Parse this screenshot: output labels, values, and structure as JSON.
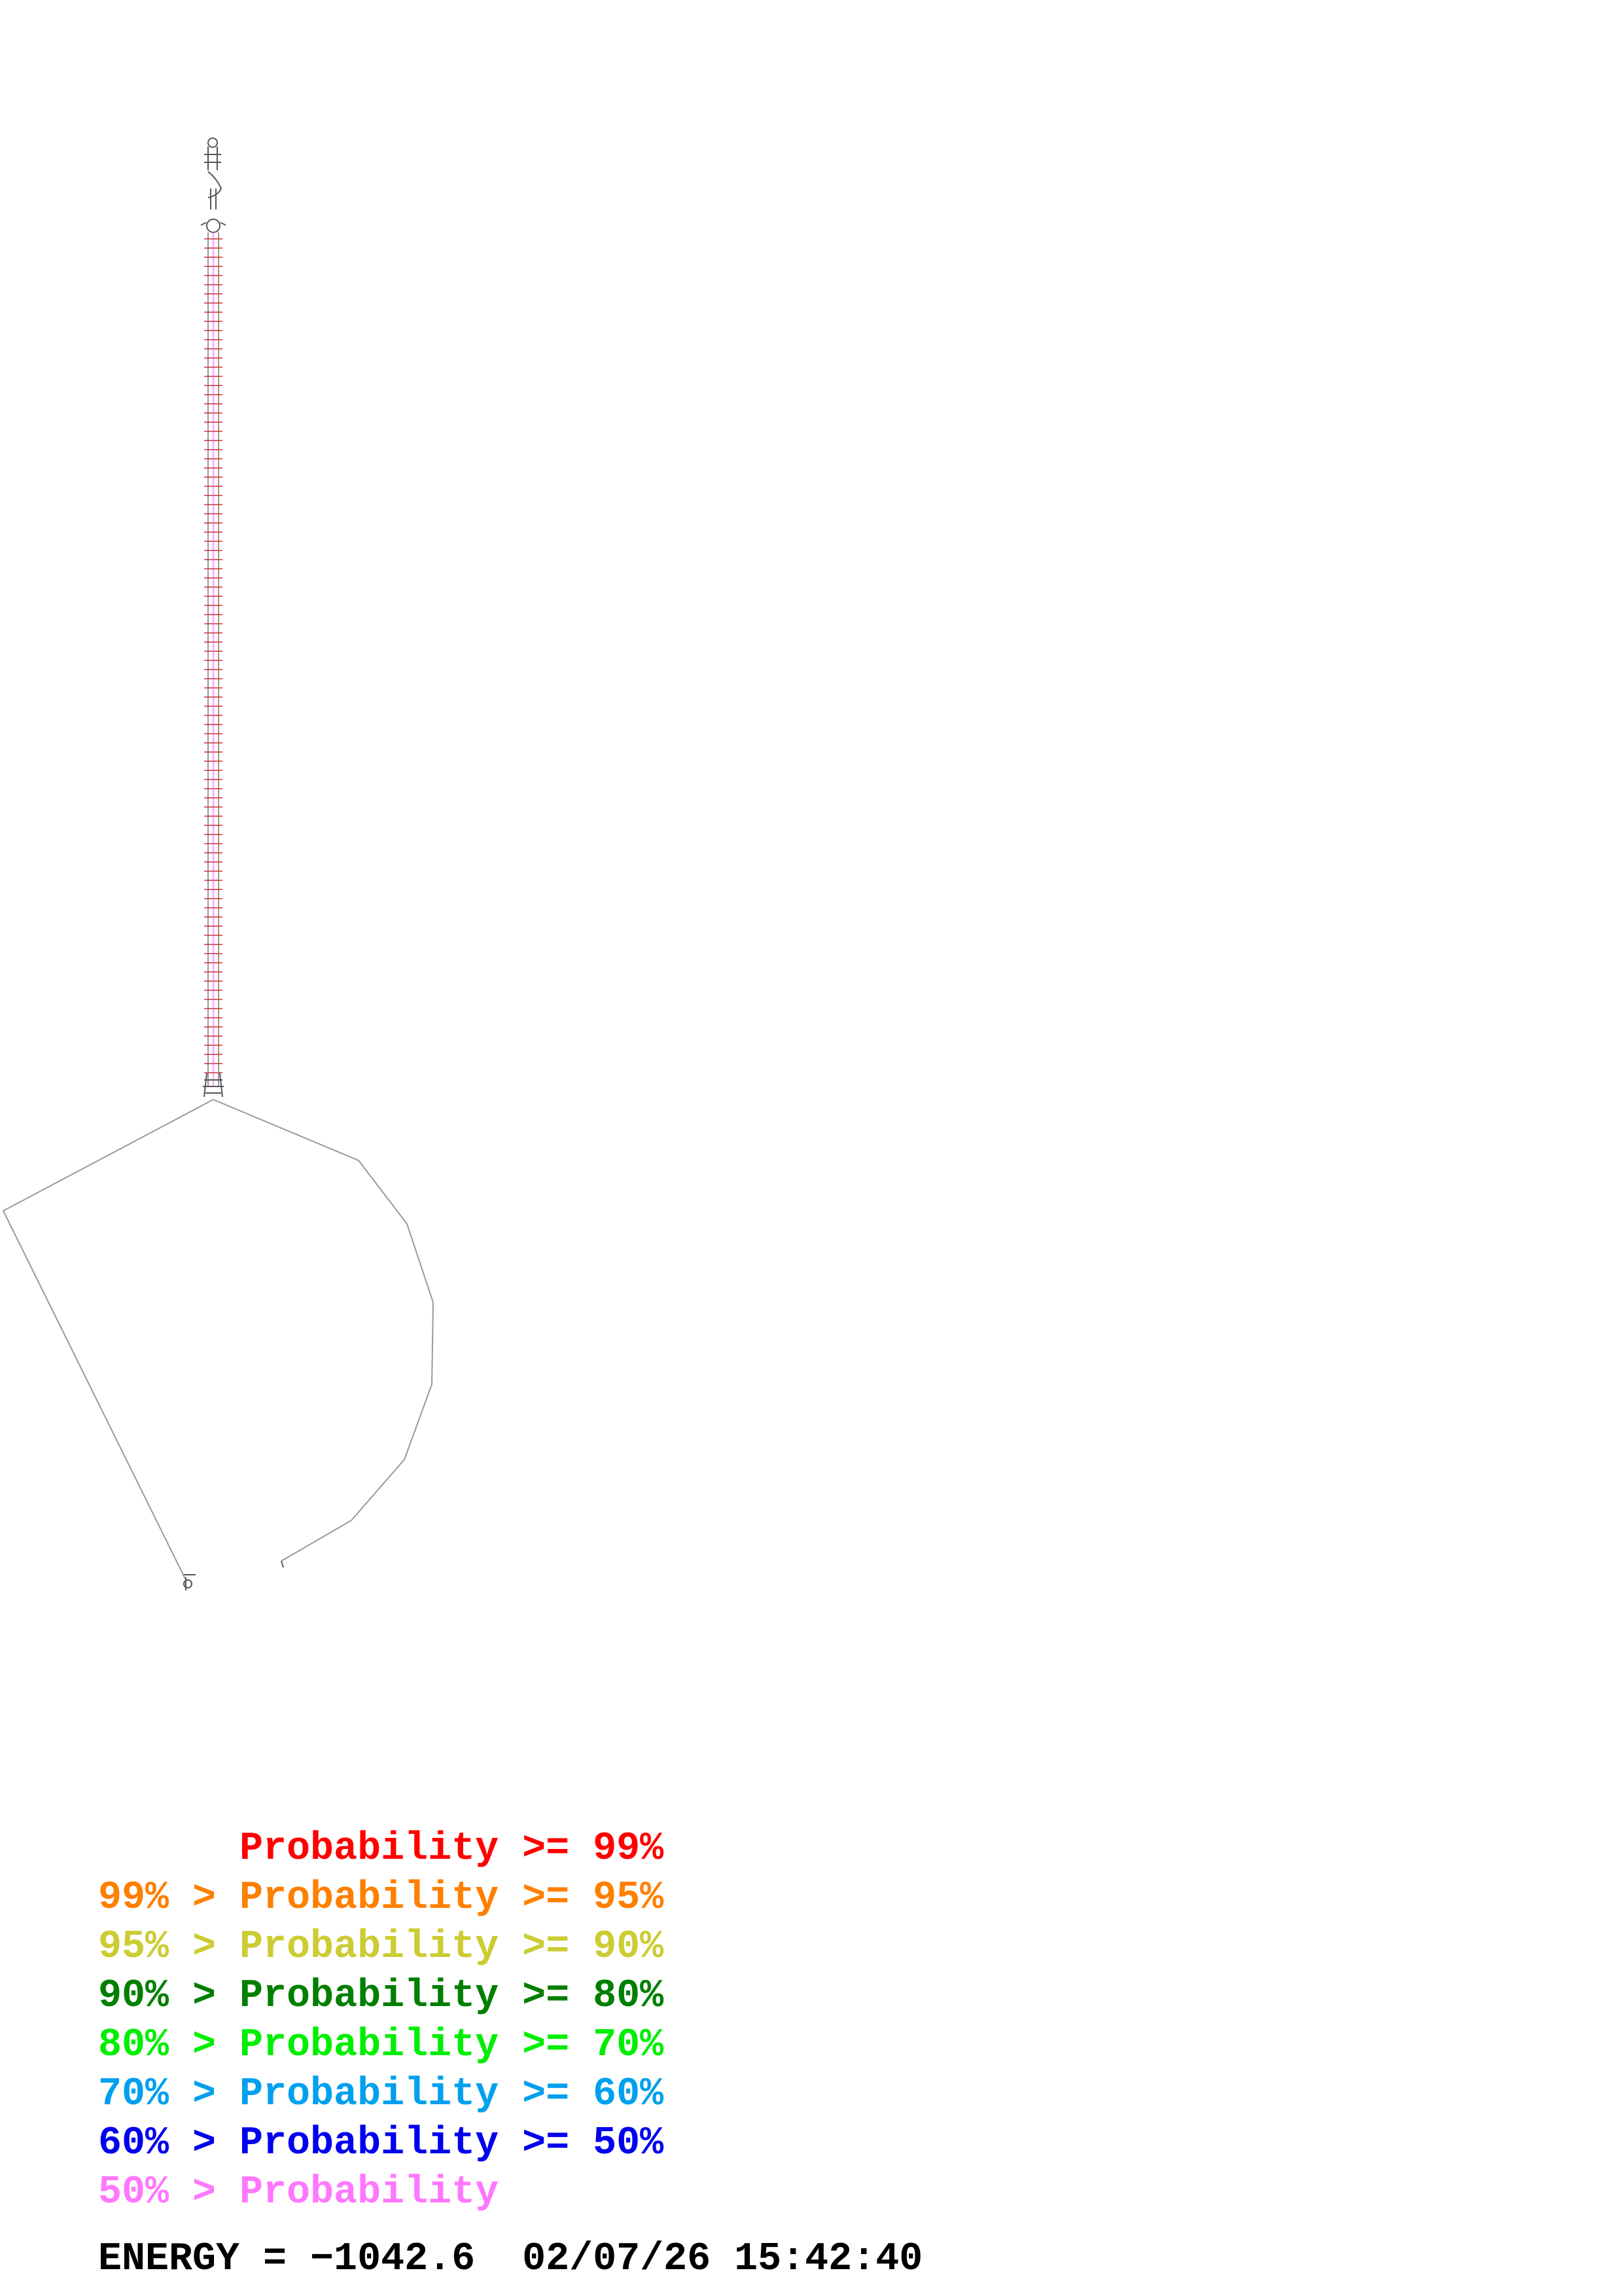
{
  "legend": {
    "entries": [
      {
        "text": "      Probability >= 99%",
        "color": "#ff0000"
      },
      {
        "text": "99% > Probability >= 95%",
        "color": "#ff7f00"
      },
      {
        "text": "95% > Probability >= 90%",
        "color": "#cccc33"
      },
      {
        "text": "90% > Probability >= 80%",
        "color": "#007f00"
      },
      {
        "text": "80% > Probability >= 70%",
        "color": "#00ee00"
      },
      {
        "text": "70% > Probability >= 60%",
        "color": "#00a0ee"
      },
      {
        "text": "60% > Probability >= 50%",
        "color": "#0000ee"
      },
      {
        "text": "50% > Probability",
        "color": "#ff77ff"
      }
    ]
  },
  "footer": {
    "energy_text": "ENERGY = −1042.6  02/07/26 15:42:40"
  },
  "colors": {
    "backbone": "#999999",
    "pair_high_probability": "#ff0000",
    "pair_low_probability": "#ff77ff"
  }
}
